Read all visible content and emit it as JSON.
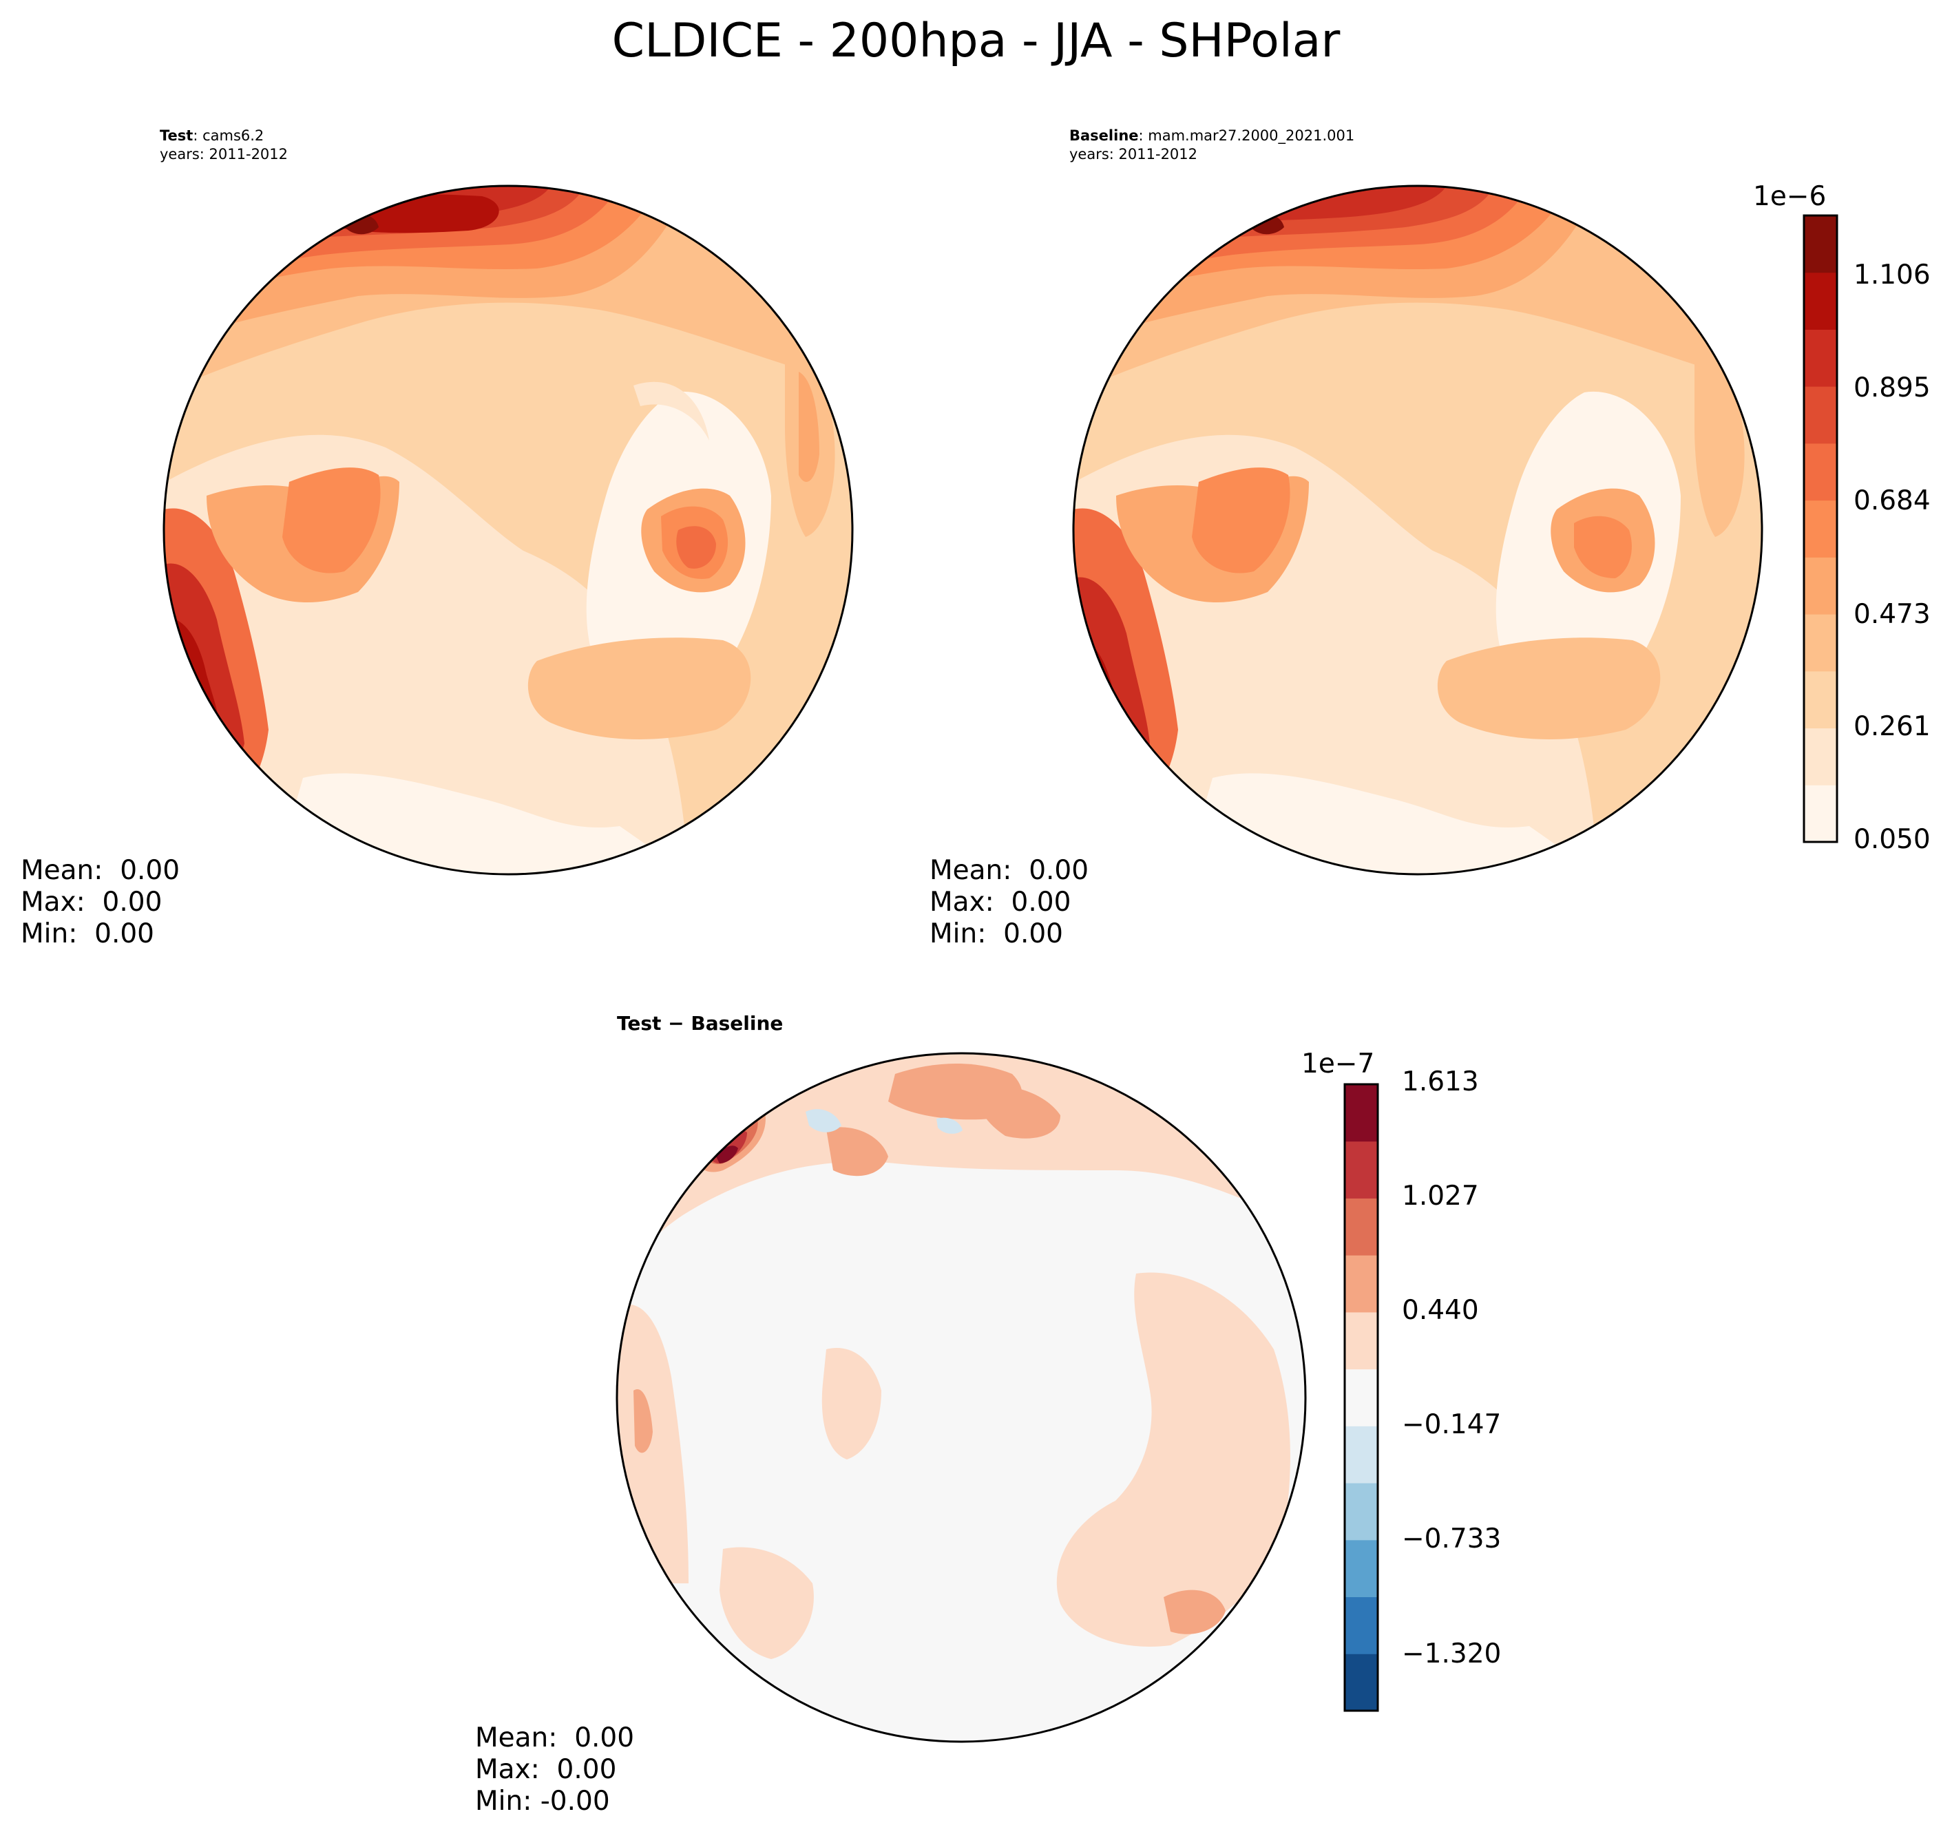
{
  "title": "CLDICE - 200hpa - JJA - SHPolar",
  "panels": [
    {
      "id": "test",
      "label_bold": "Test",
      "label_rest": ": cams6.2",
      "years": "years: 2011-2012",
      "mean": "Mean:  0.00",
      "max": "Max:  0.00",
      "min": "Min:  0.00"
    },
    {
      "id": "baseline",
      "label_bold": "Baseline",
      "label_rest": ": mam.mar27.2000_2021.001",
      "years": "years: 2011-2012",
      "mean": "Mean:  0.00",
      "max": "Max:  0.00",
      "min": "Min:  0.00"
    },
    {
      "id": "diff",
      "label_bold": "Test − Baseline",
      "mean": "Mean:  0.00",
      "max": "Max:  0.00",
      "min": "Min: -0.00"
    }
  ],
  "colorbars": {
    "main": {
      "exponent": "1e−6",
      "ticks": [
        "0.050",
        "0.261",
        "0.473",
        "0.684",
        "0.895",
        "1.106"
      ],
      "levels": 11,
      "colors": [
        "#fff5eb",
        "#fee6ce",
        "#fdd4a8",
        "#fdc08b",
        "#fca86e",
        "#fb8c53",
        "#f26d42",
        "#e04d31",
        "#cc2e21",
        "#b21009",
        "#850f08"
      ]
    },
    "diff": {
      "exponent": "1e−7",
      "ticks": [
        "−1.320",
        "−0.733",
        "−0.147",
        "0.440",
        "1.027",
        "1.613"
      ],
      "levels": 11,
      "colors": [
        "#134b87",
        "#2e77b7",
        "#5ba2cf",
        "#9ecae1",
        "#d2e5f0",
        "#f7f7f7",
        "#fcdbc7",
        "#f4a683",
        "#e07056",
        "#c13639",
        "#860b24"
      ]
    }
  },
  "chart_data": [
    {
      "type": "heatmap",
      "title": "Test : cams6.2",
      "subtitle": "years: 2011-2012",
      "projection": "South polar stereographic",
      "variable": "CLDICE",
      "units_scale": "1e−6",
      "level_range": [
        0.05,
        1.2
      ],
      "pattern": "High (0.9–1.2) in upper-left ring and lower-left edge; moderate (0.6–0.8) east of the continent; low (0.05–0.3) over East Antarctica interior and bottom of disk",
      "stats": {
        "mean": 0.0,
        "max": 0.0,
        "min": 0.0
      }
    },
    {
      "type": "heatmap",
      "title": "Baseline : mam.mar27.2000_2021.001",
      "subtitle": "years: 2011-2012",
      "projection": "South polar stereographic",
      "variable": "CLDICE",
      "units_scale": "1e−6",
      "level_range": [
        0.05,
        1.2
      ],
      "pattern": "Similar to Test with slightly weaker maxima in upper-left ring",
      "stats": {
        "mean": 0.0,
        "max": 0.0,
        "min": 0.0
      }
    },
    {
      "type": "heatmap",
      "title": "Test − Baseline",
      "projection": "South polar stereographic",
      "units_scale": "1e−7",
      "level_range": [
        -1.6,
        1.613
      ],
      "pattern": "Mostly near zero; positive 0.4–1.6 along upper-left and mid-latitude ring; small negative patches near upper-left",
      "stats": {
        "mean": 0.0,
        "max": 0.0,
        "min": -0.0
      }
    }
  ]
}
